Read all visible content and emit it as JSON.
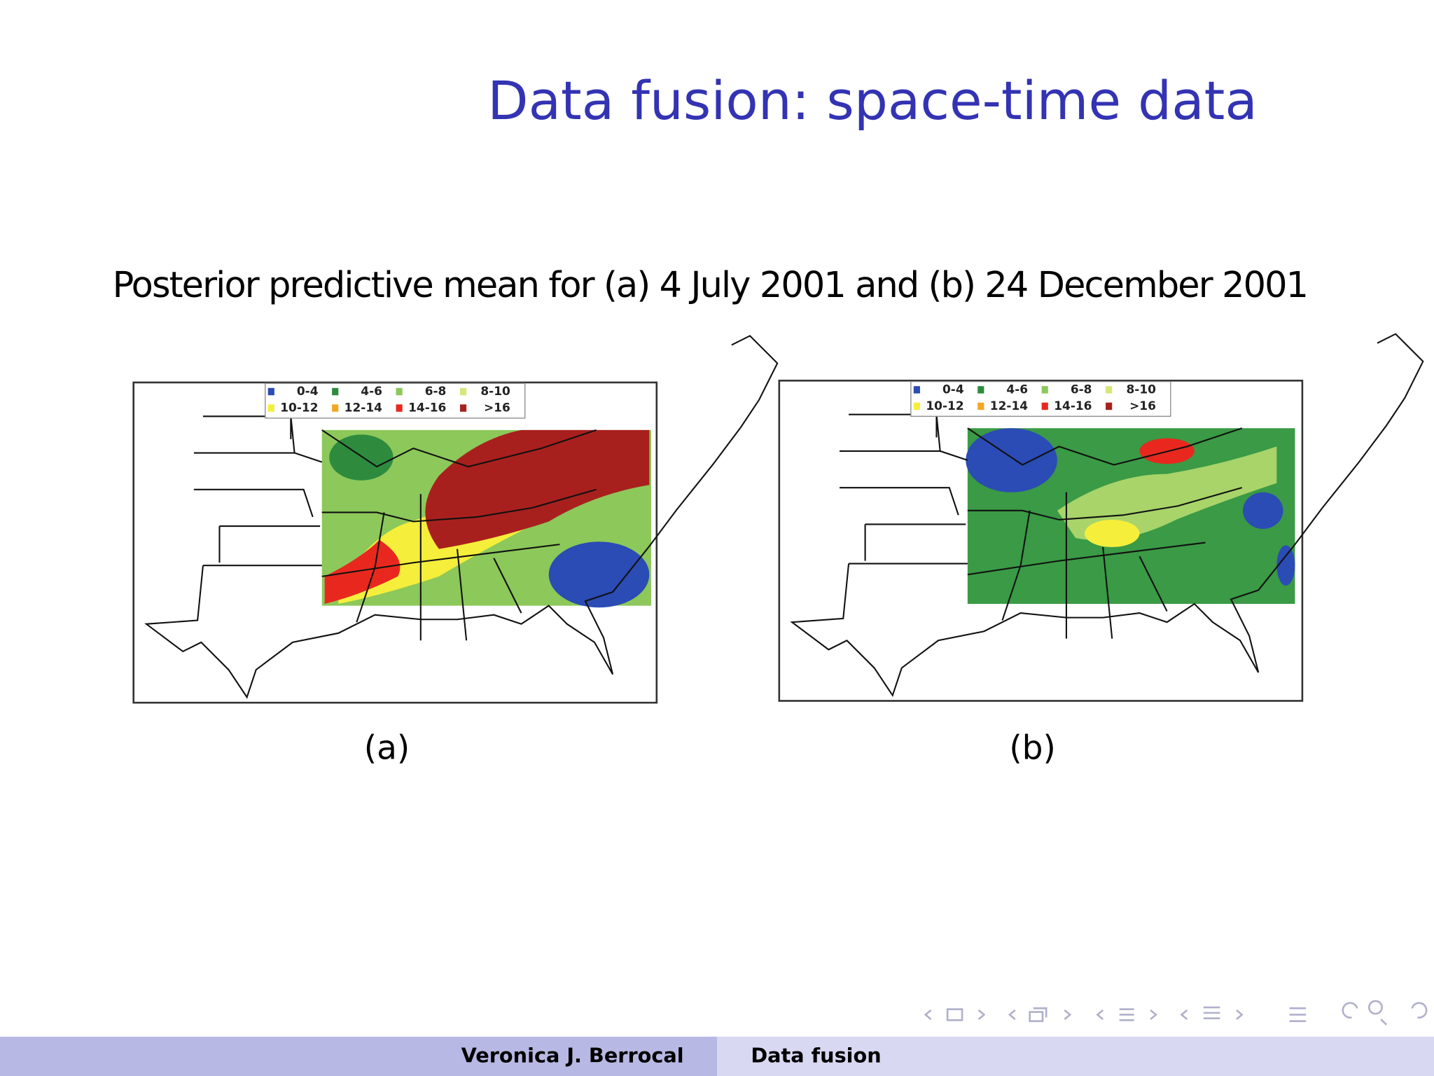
{
  "header": {
    "title": "Data fusion: space-time data"
  },
  "body": {
    "text": "Posterior predictive mean for (a) 4 July 2001 and (b) 24 December 2001",
    "figures": [
      {
        "legend": [
          "0-4",
          "4-6",
          "6-8",
          "8-10",
          "10-12",
          "12-14",
          "14-16",
          ">16"
        ],
        "caption": "(a)"
      },
      {
        "legend": [
          "0-4",
          "4-6",
          "6-8",
          "8-10",
          "10-12",
          "12-14",
          "14-16",
          ">16"
        ],
        "caption": "(b)"
      }
    ]
  },
  "footer": {
    "author": "Veronica J. Berrocal",
    "title": "Data fusion"
  }
}
